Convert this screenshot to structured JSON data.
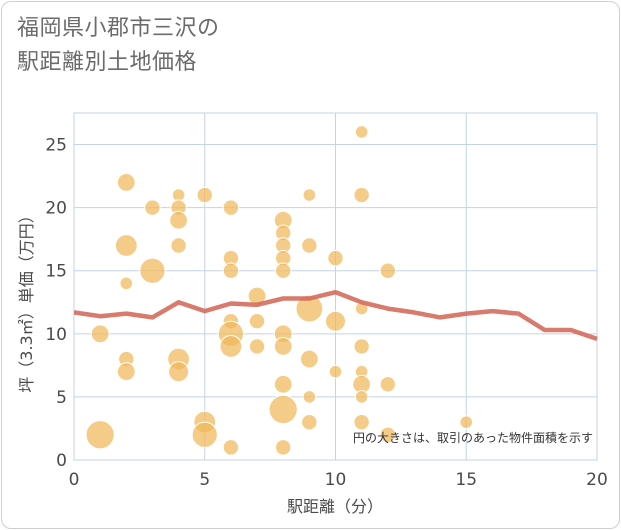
{
  "title": {
    "line1": "福岡県小郡市三沢の",
    "line2": "駅距離別土地価格"
  },
  "chart_data": {
    "type": "scatter",
    "xlabel": "駅距離（分）",
    "ylabel": "坪（3.3㎡）単価（万円）",
    "xlim": [
      0,
      20
    ],
    "ylim": [
      0,
      27.5
    ],
    "x_ticks": [
      "0",
      "5",
      "10",
      "15",
      "20"
    ],
    "y_ticks": [
      "0",
      "5",
      "10",
      "15",
      "20",
      "25"
    ],
    "x_tick_values": [
      0,
      5,
      10,
      15,
      20
    ],
    "y_tick_values": [
      0,
      5,
      10,
      15,
      20,
      25
    ],
    "grid": true,
    "note": "円の大きさは、取引のあった物件面積を示す",
    "colors": {
      "bubble": "#f0b85a",
      "line": "#d46b5c",
      "plot_border": "#c5d3e3",
      "grid": "#c5d3e3"
    },
    "bubbles": [
      {
        "x": 1,
        "y": 2,
        "s": 5
      },
      {
        "x": 1,
        "y": 10,
        "s": 2
      },
      {
        "x": 2,
        "y": 22,
        "s": 2
      },
      {
        "x": 2,
        "y": 17,
        "s": 3
      },
      {
        "x": 2,
        "y": 14,
        "s": 1
      },
      {
        "x": 2,
        "y": 8,
        "s": 1.5
      },
      {
        "x": 2,
        "y": 7,
        "s": 2
      },
      {
        "x": 3,
        "y": 20,
        "s": 1.5
      },
      {
        "x": 3,
        "y": 15,
        "s": 4
      },
      {
        "x": 4,
        "y": 21,
        "s": 1
      },
      {
        "x": 4,
        "y": 20,
        "s": 1.5
      },
      {
        "x": 4,
        "y": 19,
        "s": 2
      },
      {
        "x": 4,
        "y": 17,
        "s": 1.5
      },
      {
        "x": 4,
        "y": 8,
        "s": 3
      },
      {
        "x": 4,
        "y": 7,
        "s": 2.5
      },
      {
        "x": 5,
        "y": 21,
        "s": 1.5
      },
      {
        "x": 5,
        "y": 3,
        "s": 3
      },
      {
        "x": 5,
        "y": 2,
        "s": 4
      },
      {
        "x": 6,
        "y": 20,
        "s": 1.5
      },
      {
        "x": 6,
        "y": 16,
        "s": 1.5
      },
      {
        "x": 6,
        "y": 15,
        "s": 1.5
      },
      {
        "x": 6,
        "y": 11,
        "s": 1.5
      },
      {
        "x": 6,
        "y": 10,
        "s": 4
      },
      {
        "x": 6,
        "y": 9,
        "s": 3
      },
      {
        "x": 6,
        "y": 1,
        "s": 1.5
      },
      {
        "x": 7,
        "y": 13,
        "s": 2
      },
      {
        "x": 7,
        "y": 11,
        "s": 1.5
      },
      {
        "x": 7,
        "y": 9,
        "s": 1.5
      },
      {
        "x": 8,
        "y": 19,
        "s": 2
      },
      {
        "x": 8,
        "y": 18,
        "s": 1.5
      },
      {
        "x": 8,
        "y": 17,
        "s": 1.5
      },
      {
        "x": 8,
        "y": 16,
        "s": 1.5
      },
      {
        "x": 8,
        "y": 15,
        "s": 1.5
      },
      {
        "x": 8,
        "y": 10,
        "s": 2
      },
      {
        "x": 8,
        "y": 9,
        "s": 2
      },
      {
        "x": 8,
        "y": 6,
        "s": 2
      },
      {
        "x": 8,
        "y": 4,
        "s": 5
      },
      {
        "x": 8,
        "y": 1,
        "s": 1.5
      },
      {
        "x": 9,
        "y": 21,
        "s": 1
      },
      {
        "x": 9,
        "y": 17,
        "s": 1.5
      },
      {
        "x": 9,
        "y": 12,
        "s": 4.5
      },
      {
        "x": 9,
        "y": 8,
        "s": 2
      },
      {
        "x": 9,
        "y": 5,
        "s": 1
      },
      {
        "x": 9,
        "y": 3,
        "s": 1.5
      },
      {
        "x": 10,
        "y": 16,
        "s": 1.5
      },
      {
        "x": 10,
        "y": 11,
        "s": 2.5
      },
      {
        "x": 10,
        "y": 7,
        "s": 1
      },
      {
        "x": 11,
        "y": 26,
        "s": 1
      },
      {
        "x": 11,
        "y": 21,
        "s": 1.5
      },
      {
        "x": 11,
        "y": 12,
        "s": 1
      },
      {
        "x": 11,
        "y": 9,
        "s": 1.5
      },
      {
        "x": 11,
        "y": 7,
        "s": 1
      },
      {
        "x": 11,
        "y": 6,
        "s": 2
      },
      {
        "x": 11,
        "y": 5,
        "s": 1
      },
      {
        "x": 11,
        "y": 3,
        "s": 1.5
      },
      {
        "x": 12,
        "y": 15,
        "s": 1.5
      },
      {
        "x": 12,
        "y": 6,
        "s": 1.5
      },
      {
        "x": 12,
        "y": 2,
        "s": 1.5
      },
      {
        "x": 15,
        "y": 3,
        "s": 1
      }
    ],
    "trend": {
      "x": [
        0,
        1,
        2,
        3,
        4,
        5,
        6,
        7,
        8,
        9,
        10,
        11,
        12,
        13,
        14,
        15,
        16,
        17,
        18,
        19,
        20
      ],
      "y": [
        11.7,
        11.4,
        11.6,
        11.3,
        12.5,
        11.8,
        12.4,
        12.3,
        12.8,
        12.8,
        13.3,
        12.5,
        12.0,
        11.7,
        11.3,
        11.6,
        11.8,
        11.6,
        10.3,
        10.3,
        9.6
      ]
    }
  }
}
